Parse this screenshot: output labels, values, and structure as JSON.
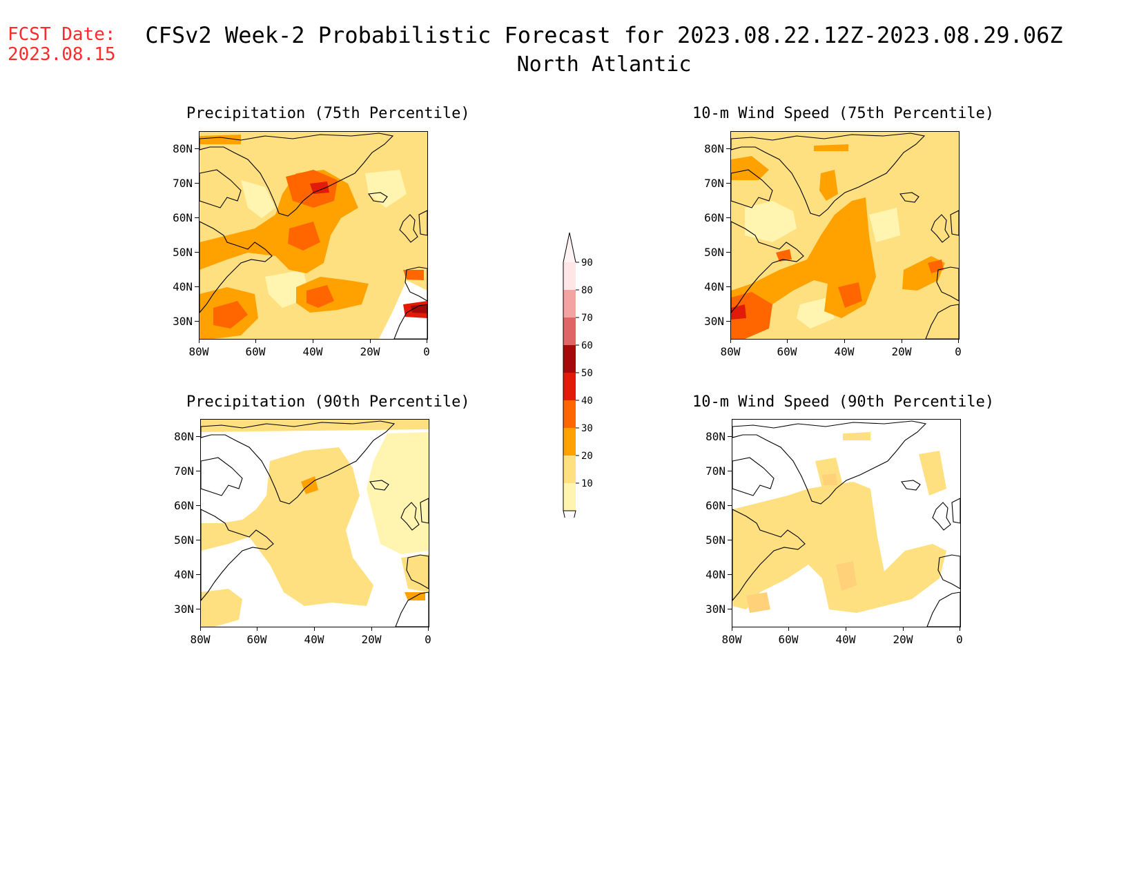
{
  "header": {
    "fcst_label": "FCST Date:",
    "fcst_date": "2023.08.15",
    "title": "CFSv2 Week-2 Probabilistic Forecast for 2023.08.22.12Z-2023.08.29.06Z",
    "subtitle": "North Atlantic"
  },
  "panels": [
    {
      "title": "Precipitation (75th Percentile)",
      "level": "high",
      "variant": "precip"
    },
    {
      "title": "10-m Wind Speed (75th Percentile)",
      "level": "high",
      "variant": "wind"
    },
    {
      "title": "Precipitation (90th Percentile)",
      "level": "low",
      "variant": "precip"
    },
    {
      "title": "10-m Wind Speed (90th Percentile)",
      "level": "low",
      "variant": "wind"
    }
  ],
  "axes": {
    "lat_labels": [
      "80N",
      "70N",
      "60N",
      "50N",
      "40N",
      "30N"
    ],
    "lon_labels": [
      "80W",
      "60W",
      "40W",
      "20W",
      "0"
    ]
  },
  "colorbar": {
    "labels": [
      "90",
      "80",
      "70",
      "60",
      "50",
      "40",
      "30",
      "20",
      "10"
    ],
    "colors": [
      "#ffe6e6",
      "#f4a3a3",
      "#e06666",
      "#a50a0a",
      "#e21a0a",
      "#ff6600",
      "#ffa200",
      "#ffe080",
      "#fff5b0"
    ]
  },
  "colors": {
    "fcst_text": "#ff2a2a"
  }
}
